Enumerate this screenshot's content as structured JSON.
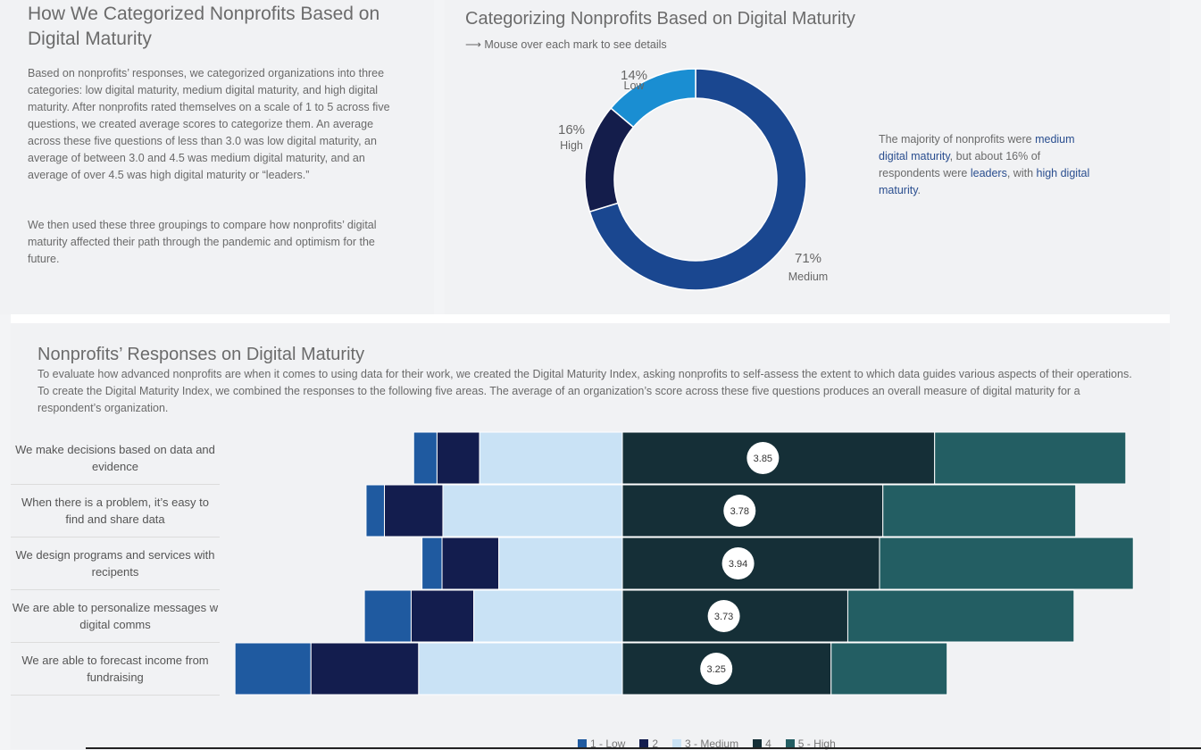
{
  "left": {
    "title": "How We Categorized Nonprofits Based on Digital Maturity",
    "p1": "Based on nonprofits’ responses, we categorized organizations into three categories: low digital maturity, medium digital maturity, and high digital maturity. After nonprofits rated themselves on a scale of 1 to 5 across five questions, we created average scores to categorize them. An average across these five questions of less than 3.0 was low digital maturity, an average of between 3.0 and 4.5 was medium digital maturity, and an average of over 4.5 was high digital maturity or “leaders.”",
    "p2": "We then used these three groupings to compare how nonprofits’ digital maturity affected their path through the pandemic and optimism for the future."
  },
  "donut": {
    "title": "Categorizing Nonprofits Based on Digital Maturity",
    "hint": "⟶ Mouse over each mark to see details",
    "note_parts": {
      "a": "The majority of nonprofits were ",
      "b": "medium digital maturity",
      "c": ", but about 16% of respondents were ",
      "d": "leaders",
      "e": ", with ",
      "f": "high digital maturity",
      "g": "."
    }
  },
  "bottom": {
    "title": "Nonprofits’ Responses on Digital Maturity",
    "desc": "To evaluate how advanced nonprofits are when it comes to using data for their work, we created the Digital Maturity Index, asking nonprofits to self-assess the extent to which data guides various aspects of their operations. To create the Digital Maturity Index, we combined the responses to the following five areas. The average of an organization’s score across these five questions produces an overall measure of digital maturity for a respondent’s organization."
  },
  "colors": {
    "low": "#1f5aa0",
    "c2": "#131d4e",
    "medium": "#c9e2f5",
    "c4": "#152f37",
    "high": "#235e63",
    "donut_medium": "#1a4790",
    "donut_high": "#141d4b",
    "donut_low": "#1a8ed2"
  },
  "chart_data": [
    {
      "type": "pie",
      "variant": "donut",
      "slices": [
        {
          "label": "Medium",
          "value": 71,
          "display": "71%"
        },
        {
          "label": "High",
          "value": 16,
          "display": "16%"
        },
        {
          "label": "Low",
          "value": 14,
          "display": "14%"
        }
      ]
    },
    {
      "type": "bar",
      "orientation": "horizontal",
      "stacked": "diverging",
      "categories": [
        "We make decisions based on data and evidence",
        "When there is a problem, it’s easy to find and share data",
        "We design programs and services with recipents",
        "We are able to personalize messages w digital comms",
        "We are able to forecast income from fundraising"
      ],
      "series": [
        {
          "name": "1 - Low",
          "values": [
            2.8,
            2.2,
            2.4,
            5.6,
            9.1
          ]
        },
        {
          "name": "2",
          "values": [
            5.1,
            7.0,
            6.8,
            7.5,
            12.9
          ]
        },
        {
          "name": "3 - Medium",
          "values": [
            17.1,
            21.5,
            14.8,
            17.8,
            24.4
          ]
        },
        {
          "name": "4",
          "values": [
            37.4,
            31.2,
            30.8,
            27.0,
            25.0
          ]
        },
        {
          "name": "5 - High",
          "values": [
            22.9,
            23.1,
            30.4,
            27.1,
            13.9
          ]
        }
      ],
      "averages": [
        "3.85",
        "3.78",
        "3.94",
        "3.73",
        "3.25"
      ],
      "legend": [
        "1 - Low",
        "2",
        "3 - Medium",
        "4",
        "5 - High"
      ],
      "legend_position": "bottom"
    }
  ]
}
